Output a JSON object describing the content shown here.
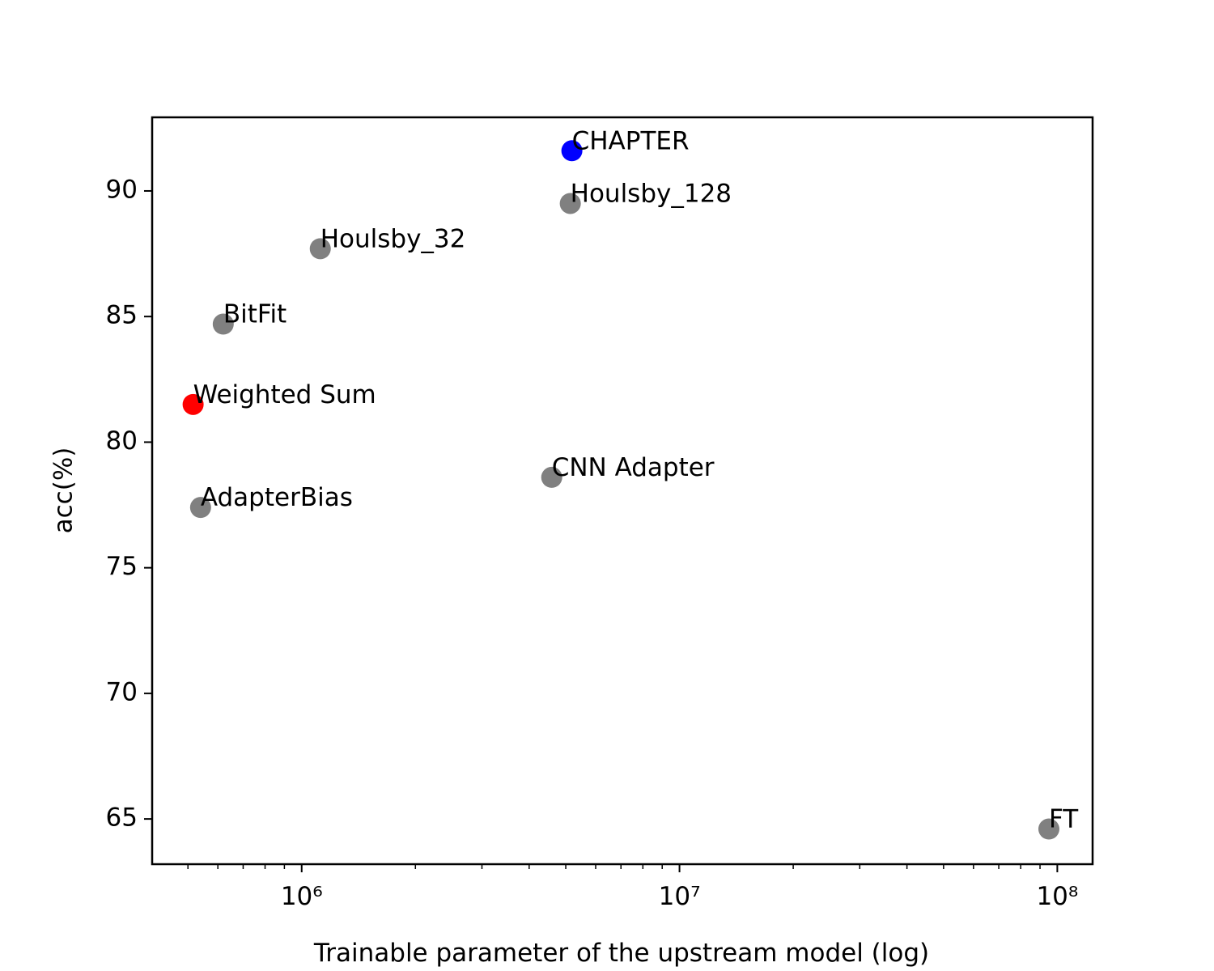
{
  "chart_data": {
    "type": "scatter",
    "xlabel": "Trainable parameter of the upstream model (log)",
    "ylabel": "acc(%)",
    "xscale": "log",
    "labels": [
      "CHAPTER",
      "Houlsby_128",
      "Houlsby_32",
      "BitFit",
      "Weighted Sum",
      "AdapterBias",
      "CNN Adapter",
      "FT"
    ],
    "x": [
      5190000,
      5140000,
      1120000,
      620000,
      516000,
      540000,
      4590000,
      95000000
    ],
    "values": [
      91.6,
      89.5,
      87.7,
      84.7,
      81.5,
      77.4,
      78.6,
      64.6
    ],
    "colors": [
      "#0000ff",
      "#808080",
      "#808080",
      "#808080",
      "#ff0000",
      "#808080",
      "#808080",
      "#808080"
    ],
    "xlim": [
      402000,
      124000000
    ],
    "ylim": [
      63.2,
      92.93
    ],
    "xticks": [
      {
        "value": 1000000,
        "label": "10⁶"
      },
      {
        "value": 10000000,
        "label": "10⁷"
      },
      {
        "value": 100000000,
        "label": "10⁸"
      }
    ],
    "xminorticks": [
      500000,
      600000,
      700000,
      800000,
      900000,
      2000000,
      3000000,
      4000000,
      5000000,
      6000000,
      7000000,
      8000000,
      9000000,
      20000000,
      30000000,
      40000000,
      50000000,
      60000000,
      70000000,
      80000000,
      90000000
    ],
    "yticks": [
      65,
      70,
      75,
      80,
      85,
      90
    ]
  }
}
